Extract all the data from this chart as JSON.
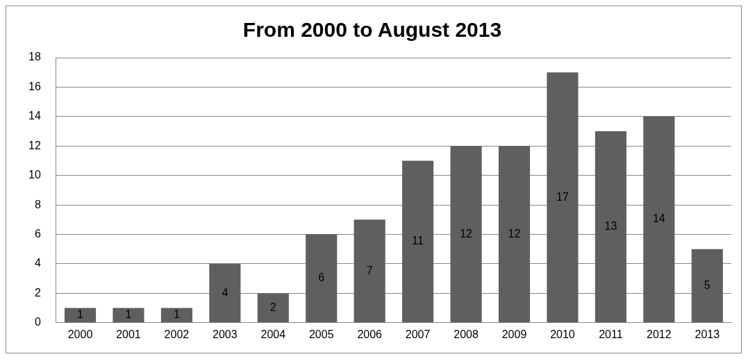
{
  "chart_data": {
    "type": "bar",
    "title": "From 2000 to August 2013",
    "categories": [
      "2000",
      "2001",
      "2002",
      "2003",
      "2004",
      "2005",
      "2006",
      "2007",
      "2008",
      "2009",
      "2010",
      "2011",
      "2012",
      "2013"
    ],
    "values": [
      1,
      1,
      1,
      4,
      2,
      6,
      7,
      11,
      12,
      12,
      17,
      13,
      14,
      5
    ],
    "color": "#5f5f5f",
    "ylim": [
      0,
      18
    ],
    "yticks": [
      0,
      2,
      4,
      6,
      8,
      10,
      12,
      14,
      16,
      18
    ],
    "grid": "y",
    "data_labels": true
  }
}
